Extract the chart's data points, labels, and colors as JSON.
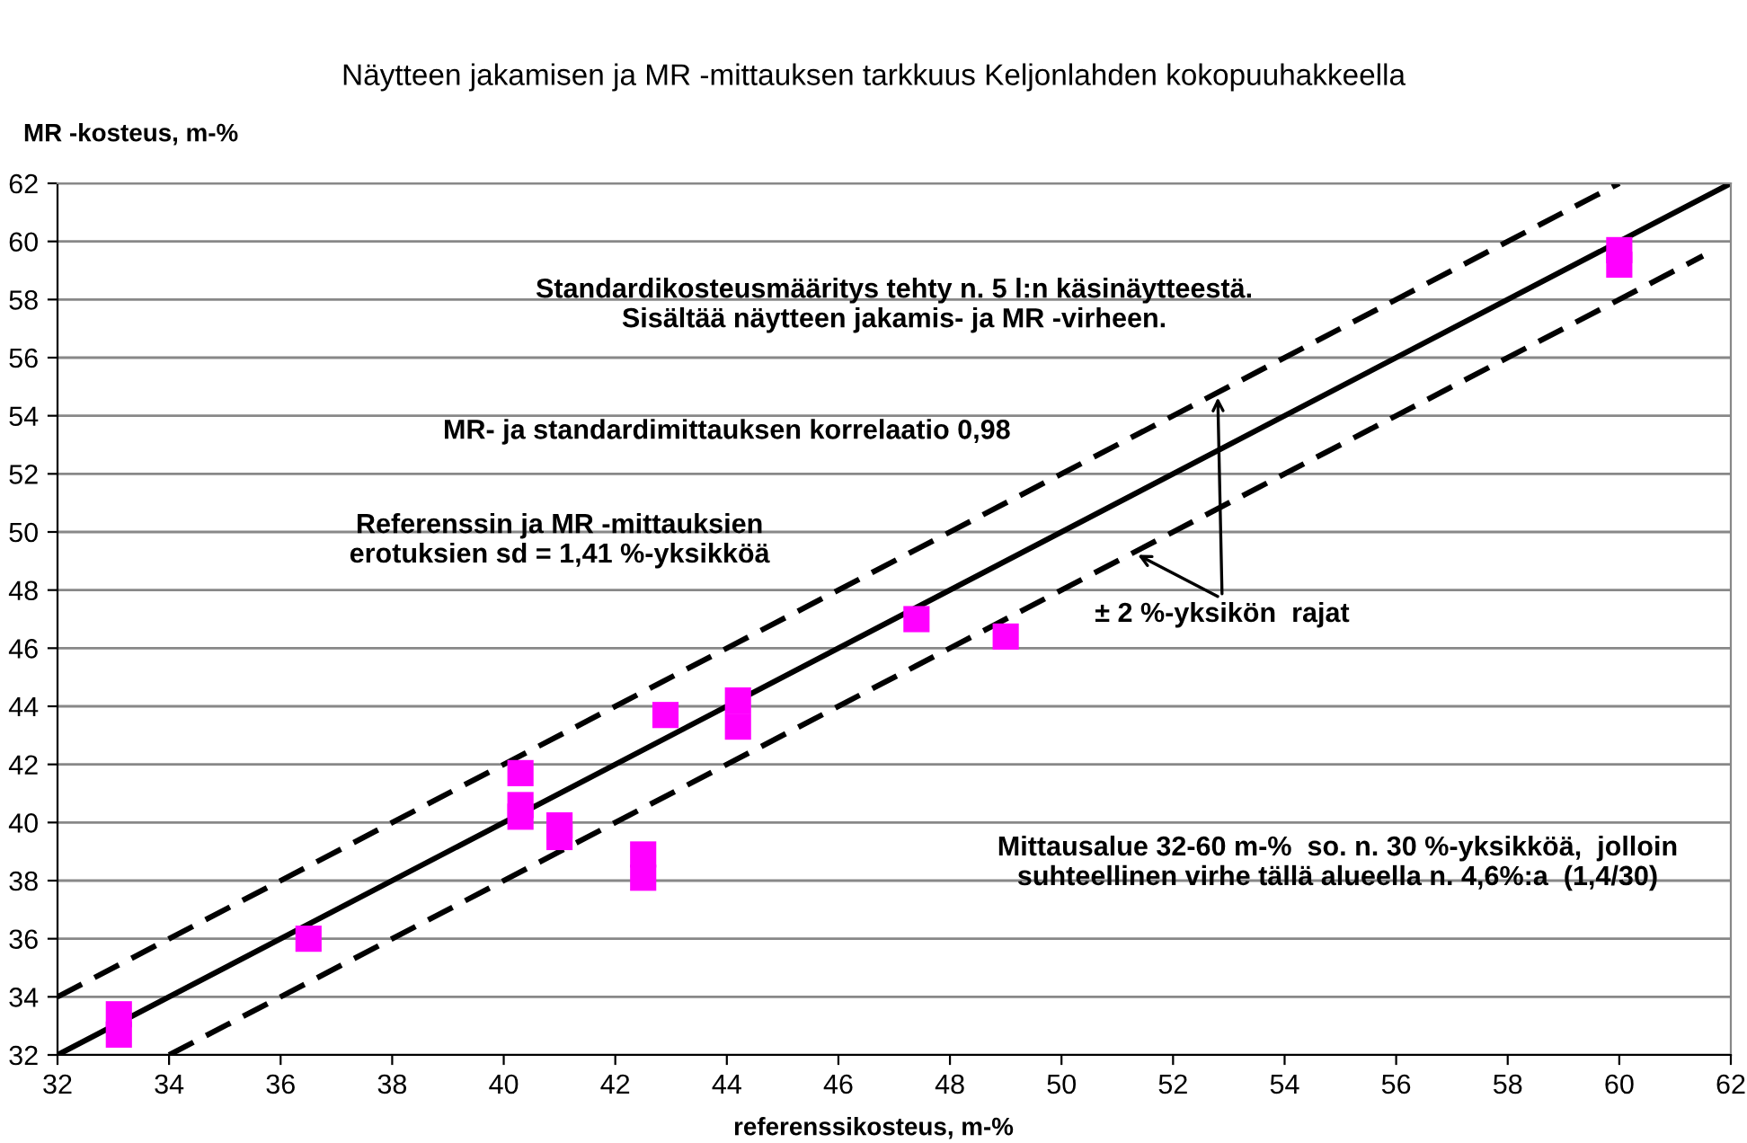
{
  "chart_data": {
    "type": "scatter",
    "title": "Näytteen jakamisen ja MR -mittauksen tarkkuus Keljonlahden kokopuuhakkeella",
    "xlabel": "referenssikosteus, m-%",
    "ylabel": "MR -kosteus, m-%",
    "xlim": [
      32,
      62
    ],
    "ylim": [
      32,
      62
    ],
    "xticks": [
      32,
      34,
      36,
      38,
      40,
      42,
      44,
      46,
      48,
      50,
      52,
      54,
      56,
      58,
      60,
      62
    ],
    "yticks": [
      32,
      34,
      36,
      38,
      40,
      42,
      44,
      46,
      48,
      50,
      52,
      54,
      56,
      58,
      60,
      62
    ],
    "grid": "y",
    "series": [
      {
        "marker": "square",
        "color": "#ff00ff",
        "x": [
          33.1,
          33.1,
          36.5,
          40.3,
          40.3,
          40.3,
          41.0,
          41.0,
          42.5,
          42.5,
          42.9,
          44.2,
          44.2,
          47.4,
          49.0,
          60.0,
          60.0
        ],
        "values": [
          32.7,
          33.4,
          36.0,
          41.7,
          40.2,
          40.6,
          39.5,
          39.9,
          38.1,
          38.9,
          43.7,
          43.3,
          44.2,
          47.0,
          46.4,
          59.2,
          59.7
        ]
      },
      {
        "type": "line",
        "color": "#000000",
        "line_style": "solid",
        "x": [
          32,
          62
        ],
        "values": [
          32,
          62
        ]
      },
      {
        "type": "line",
        "color": "#000000",
        "line_style": "dashed",
        "x": [
          32,
          60
        ],
        "values": [
          34,
          62
        ]
      },
      {
        "type": "line",
        "color": "#000000",
        "line_style": "dashed",
        "x": [
          34,
          61.5
        ],
        "values": [
          32,
          59.5
        ]
      }
    ],
    "annotations": [
      "Standardikosteusmääritys tehty n. 5 l:n käsinäytteestä.\nSisältää näytteen jakamis- ja MR -virheen.",
      "MR- ja standardimittauksen korrelaatio 0,98",
      "Referenssin ja MR -mittauksien\nerotuksien sd = 1,41 %-yksikköä",
      "Mittausalue 32-60 m-%  so. n. 30 %-yksikköä,  jolloin\nsuhteellinen virhe tällä alueella n. 4,6%:a  (1,4/30)",
      {
        "text": "± 2 %-yksikön  rajat",
        "x": 52.8,
        "y": 54.8
      }
    ]
  }
}
